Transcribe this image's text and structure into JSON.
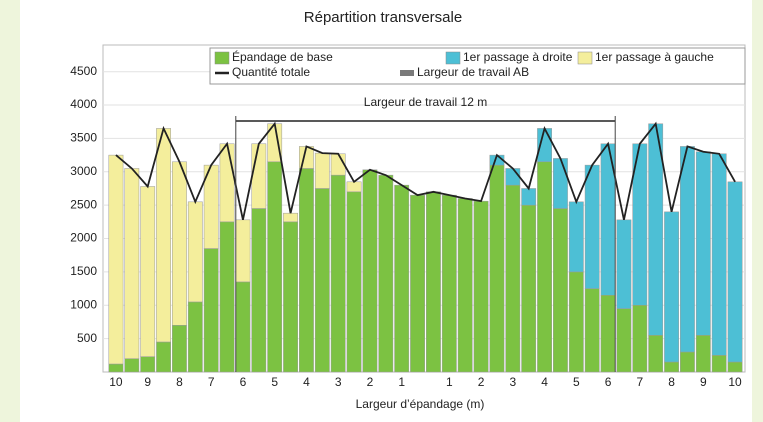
{
  "chart_data": {
    "type": "stacked_bar_line",
    "title": "Répartition transversale",
    "x_label": "Largeur d’épandage (m)",
    "annotation": "Largeur de travail 12 m",
    "categories": [
      "10",
      null,
      "9",
      null,
      "8",
      null,
      "7",
      null,
      "6",
      null,
      "5",
      null,
      "4",
      null,
      "3",
      null,
      "2",
      null,
      "1",
      null,
      null,
      "1",
      null,
      "2",
      null,
      "3",
      null,
      "4",
      null,
      "5",
      null,
      "6",
      null,
      "7",
      null,
      "8",
      null,
      "9",
      null,
      "10"
    ],
    "series": [
      {
        "name": "Épandage de base",
        "color": "#7cc242",
        "kind": "bar",
        "values": [
          120,
          200,
          230,
          450,
          700,
          1050,
          1850,
          2250,
          1350,
          2450,
          3150,
          2250,
          3050,
          2750,
          2950,
          2700,
          3030,
          2950,
          2800,
          2650,
          2700,
          2650,
          2600,
          2560,
          3100,
          2800,
          2500,
          3150,
          2450,
          1500,
          1250,
          1150,
          950,
          1000,
          550,
          150,
          300,
          550,
          250,
          150
        ]
      },
      {
        "name": "1er passage à droite",
        "color": "#4dbfd5",
        "kind": "bar",
        "values": [
          0,
          0,
          0,
          0,
          0,
          0,
          0,
          0,
          0,
          0,
          0,
          0,
          0,
          0,
          0,
          0,
          0,
          0,
          0,
          0,
          0,
          0,
          0,
          0,
          150,
          250,
          250,
          500,
          750,
          1050,
          1850,
          2270,
          1330,
          2420,
          3170,
          2250,
          3080,
          2750,
          3020,
          2700
        ]
      },
      {
        "name": "1er passage à gauche",
        "color": "#f4ee9c",
        "kind": "bar",
        "values": [
          3130,
          2850,
          2550,
          3200,
          2450,
          1500,
          1250,
          1170,
          930,
          970,
          570,
          130,
          330,
          530,
          320,
          150,
          0,
          0,
          0,
          0,
          0,
          0,
          0,
          0,
          0,
          0,
          0,
          0,
          0,
          0,
          0,
          0,
          0,
          0,
          0,
          0,
          0,
          0,
          0,
          0
        ]
      },
      {
        "name": "Quantité totale",
        "color": "#222222",
        "kind": "line",
        "values": [
          3250,
          3050,
          2780,
          3650,
          3150,
          2550,
          3100,
          3420,
          2280,
          3420,
          3720,
          2380,
          3380,
          3280,
          3270,
          2850,
          3030,
          2950,
          2800,
          2650,
          2700,
          2650,
          2600,
          2560,
          3250,
          3050,
          2750,
          3650,
          3200,
          2550,
          3100,
          3420,
          2280,
          3420,
          3720,
          2400,
          3380,
          3300,
          3270,
          2850
        ]
      }
    ],
    "working_width": {
      "name": "Largeur de travail AB",
      "color": "#7a7a7a"
    },
    "ylim": [
      0,
      4900
    ],
    "yticks": [
      500,
      1000,
      1500,
      2000,
      2500,
      3000,
      3500,
      4000,
      4500
    ],
    "grid": true
  }
}
